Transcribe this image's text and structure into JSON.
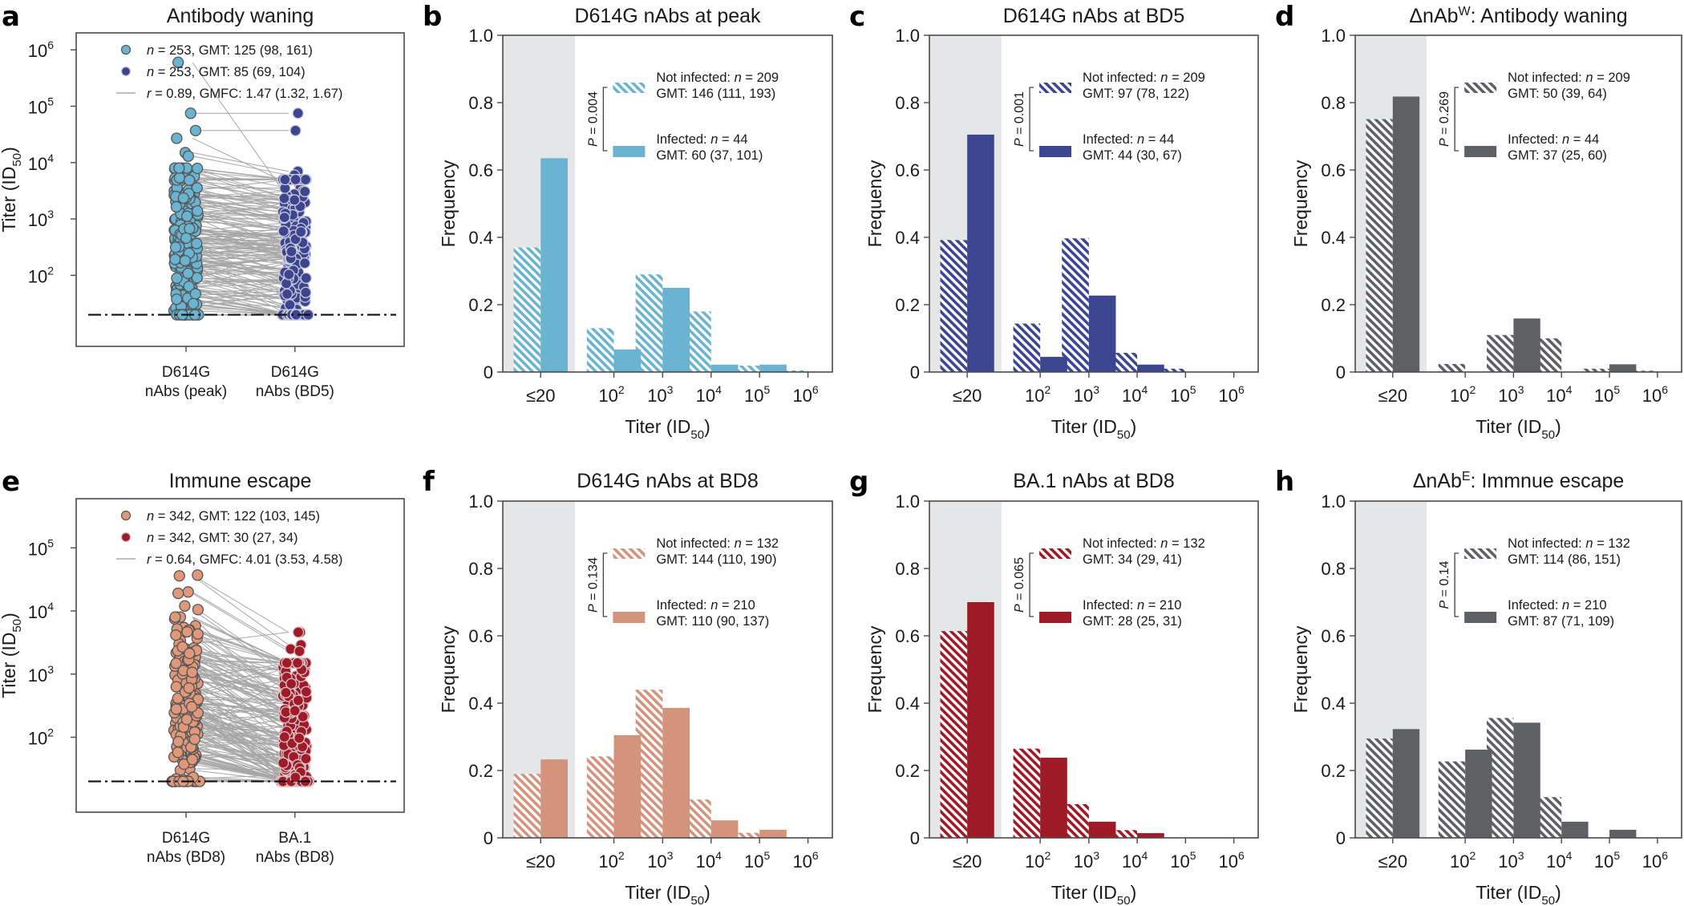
{
  "figure": {
    "panel_letters": [
      "a",
      "b",
      "c",
      "d",
      "e",
      "f",
      "g",
      "h"
    ]
  },
  "chart_data": [
    {
      "id": "a",
      "type": "scatter",
      "title": "Antibody waning",
      "ylabel": "Titer (ID50)",
      "ylabel_main": "Titer (ID",
      "ylabel_sub": "50",
      "yscale": "log",
      "ylim": [
        5.5,
        2000000
      ],
      "yticks": [
        100,
        1000,
        10000,
        100000,
        1000000
      ],
      "ytick_labels": [
        {
          "base": "10",
          "exp": "2"
        },
        {
          "base": "10",
          "exp": "3"
        },
        {
          "base": "10",
          "exp": "4"
        },
        {
          "base": "10",
          "exp": "5"
        },
        {
          "base": "10",
          "exp": "6"
        }
      ],
      "categories": [
        [
          "D614G",
          "nAbs (peak)"
        ],
        [
          "D614G",
          "nAbs (BD5)"
        ]
      ],
      "detection_limit": 20,
      "grid": false,
      "legend_position": "top",
      "legend": [
        {
          "marker": "dot",
          "color": "#6ab4d1",
          "stroke": "#555555",
          "n_prefix": "n",
          "text": " = 253, GMT: 125 (98, 161)"
        },
        {
          "marker": "dot",
          "color": "#3b4590",
          "stroke": "#c8c8d8",
          "n_prefix": "n",
          "text": " = 253, GMT: 85 (69, 104)"
        },
        {
          "marker": "line",
          "color": "#aaaaaa",
          "n_prefix": "r",
          "text": " = 0.89, GMFC: 1.47 (1.32, 1.67)"
        }
      ],
      "series": [
        {
          "name": "D614G nAbs (peak)",
          "n": 253,
          "gmt": 125,
          "ci": [
            98,
            161
          ],
          "color": "#6ab4d1",
          "edge": "#555555",
          "highlighted_points": [
            600000,
            75000,
            37000,
            27000,
            15000,
            13000,
            7800,
            7000,
            6800,
            5700,
            4200,
            3500
          ]
        },
        {
          "name": "D614G nAbs (BD5)",
          "n": 253,
          "gmt": 85,
          "ci": [
            69,
            104
          ],
          "color": "#3b4590",
          "edge": "#c9c9d9",
          "highlighted_points": [
            2300,
            75000,
            37000,
            4200,
            7000,
            6000,
            3500,
            2300,
            1900,
            1300,
            2200,
            900
          ]
        }
      ],
      "pairing": {
        "r": 0.89,
        "gmfc": 1.47,
        "gmfc_ci": [
          1.32,
          1.67
        ],
        "line_color": "#a6a6a6"
      }
    },
    {
      "id": "b",
      "type": "bar",
      "title": "D614G nAbs at peak",
      "xlabel": "Titer (ID50)",
      "ylabel": "Frequency",
      "ylim": [
        0,
        1.0
      ],
      "yticks": [
        0,
        0.2,
        0.4,
        0.6,
        0.8,
        1.0
      ],
      "ytick_labels": [
        "0",
        "0.2",
        "0.4",
        "0.6",
        "0.8",
        "1.0"
      ],
      "categories": [
        "≤20",
        "10^2",
        "10^3",
        "10^4",
        "10^5",
        "10^6"
      ],
      "category_labels": [
        {
          "base": "≤20",
          "exp": ""
        },
        {
          "base": "10",
          "exp": "2"
        },
        {
          "base": "10",
          "exp": "3"
        },
        {
          "base": "10",
          "exp": "4"
        },
        {
          "base": "10",
          "exp": "5"
        },
        {
          "base": "10",
          "exp": "6"
        }
      ],
      "shaded_category": "≤20",
      "color": "#6ab4d1",
      "p_value": "= 0.004",
      "series": [
        {
          "name": "Not infected",
          "hatched": true,
          "n": 209,
          "legend_line1": "Not infected: ",
          "legend_n": " = 209",
          "legend_line2": "GMT: 146 (111, 193)",
          "values": [
            0.37,
            0.13,
            0.29,
            0.18,
            0.019,
            0.005
          ]
        },
        {
          "name": "Infected",
          "hatched": false,
          "n": 44,
          "legend_line1": "Infected: ",
          "legend_n": " = 44",
          "legend_line2": "GMT: 60 (37, 101)",
          "values": [
            0.635,
            0.067,
            0.25,
            0.022,
            0.022,
            0.0
          ]
        }
      ],
      "legend_position": "upper-right",
      "grid": false
    },
    {
      "id": "c",
      "type": "bar",
      "title": "D614G nAbs at BD5",
      "xlabel": "Titer (ID50)",
      "ylabel": "Frequency",
      "ylim": [
        0,
        1.0
      ],
      "yticks": [
        0,
        0.2,
        0.4,
        0.6,
        0.8,
        1.0
      ],
      "ytick_labels": [
        "0",
        "0.2",
        "0.4",
        "0.6",
        "0.8",
        "1.0"
      ],
      "categories": [
        "≤20",
        "10^2",
        "10^3",
        "10^4",
        "10^5",
        "10^6"
      ],
      "category_labels": [
        {
          "base": "≤20",
          "exp": ""
        },
        {
          "base": "10",
          "exp": "2"
        },
        {
          "base": "10",
          "exp": "3"
        },
        {
          "base": "10",
          "exp": "4"
        },
        {
          "base": "10",
          "exp": "5"
        },
        {
          "base": "10",
          "exp": "6"
        }
      ],
      "shaded_category": "≤20",
      "color": "#3b4590",
      "p_value": "= 0.001",
      "series": [
        {
          "name": "Not infected",
          "hatched": true,
          "n": 209,
          "legend_line1": "Not infected: ",
          "legend_n": " = 209",
          "legend_line2": "GMT: 97 (78, 122)",
          "values": [
            0.392,
            0.144,
            0.397,
            0.057,
            0.01,
            0.0
          ]
        },
        {
          "name": "Infected",
          "hatched": false,
          "n": 44,
          "legend_line1": "Infected: ",
          "legend_n": " = 44",
          "legend_line2": "GMT: 44 (30, 67)",
          "values": [
            0.705,
            0.045,
            0.227,
            0.022,
            0.0,
            0.0
          ]
        }
      ],
      "legend_position": "upper-right",
      "grid": false
    },
    {
      "id": "d",
      "type": "bar",
      "title": "ΔnAb",
      "title_sup": "W",
      "title_rest": ": Antibody waning",
      "xlabel": "Titer (ID50)",
      "ylabel": "Frequency",
      "ylim": [
        0,
        1.0
      ],
      "yticks": [
        0,
        0.2,
        0.4,
        0.6,
        0.8,
        1.0
      ],
      "ytick_labels": [
        "0",
        "0.2",
        "0.4",
        "0.6",
        "0.8",
        "1.0"
      ],
      "categories": [
        "≤20",
        "10^2",
        "10^3",
        "10^4",
        "10^5",
        "10^6"
      ],
      "category_labels": [
        {
          "base": "≤20",
          "exp": ""
        },
        {
          "base": "10",
          "exp": "2"
        },
        {
          "base": "10",
          "exp": "3"
        },
        {
          "base": "10",
          "exp": "4"
        },
        {
          "base": "10",
          "exp": "5"
        },
        {
          "base": "10",
          "exp": "6"
        }
      ],
      "shaded_category": "≤20",
      "color": "#5e6064",
      "p_value": "= 0.269",
      "series": [
        {
          "name": "Not infected",
          "hatched": true,
          "n": 209,
          "legend_line1": "Not infected: ",
          "legend_n": " = 209",
          "legend_line2": "GMT: 50 (39, 64)",
          "values": [
            0.751,
            0.024,
            0.11,
            0.1,
            0.01,
            0.004
          ]
        },
        {
          "name": "Infected",
          "hatched": false,
          "n": 44,
          "legend_line1": "Infected: ",
          "legend_n": " = 44",
          "legend_line2": "GMT: 37 (25, 60)",
          "values": [
            0.818,
            0.0,
            0.159,
            0.0,
            0.023,
            0.0
          ]
        }
      ],
      "legend_position": "upper-right",
      "grid": false
    },
    {
      "id": "e",
      "type": "scatter",
      "title": "Immune escape",
      "ylabel": "Titer (ID50)",
      "ylabel_main": "Titer (ID",
      "ylabel_sub": "50",
      "yscale": "log",
      "ylim": [
        6.5,
        600000
      ],
      "yticks": [
        100,
        1000,
        10000,
        100000
      ],
      "ytick_labels": [
        {
          "base": "10",
          "exp": "2"
        },
        {
          "base": "10",
          "exp": "3"
        },
        {
          "base": "10",
          "exp": "4"
        },
        {
          "base": "10",
          "exp": "5"
        }
      ],
      "categories": [
        [
          "D614G",
          "nAbs (BD8)"
        ],
        [
          "BA.1",
          "nAbs (BD8)"
        ]
      ],
      "detection_limit": 20,
      "grid": false,
      "legend_position": "top",
      "legend": [
        {
          "marker": "dot",
          "color": "#e0987a",
          "stroke": "#555555",
          "n_prefix": "n",
          "text": " = 342, GMT: 122 (103, 145)"
        },
        {
          "marker": "dot",
          "color": "#a01a28",
          "stroke": "#d4b8bc",
          "n_prefix": "n",
          "text": " = 342, GMT: 30 (27, 34)"
        },
        {
          "marker": "line",
          "color": "#aaaaaa",
          "n_prefix": "r",
          "text": " = 0.64, GMFC: 4.01 (3.53, 4.58)"
        }
      ],
      "series": [
        {
          "name": "D614G nAbs (BD8)",
          "n": 342,
          "gmt": 122,
          "ci": [
            103,
            145
          ],
          "color": "#e0987a",
          "edge": "#555555",
          "highlighted_points": [
            37000,
            36000,
            20000,
            19000,
            12000,
            10500,
            5800,
            5000,
            4300,
            3400,
            3000
          ]
        },
        {
          "name": "BA.1 nAbs (BD8)",
          "n": 342,
          "gmt": 30,
          "ci": [
            27,
            34
          ],
          "color": "#a01a28",
          "edge": "#d8c4c7",
          "highlighted_points": [
            4600,
            2900,
            2500,
            2300,
            1050,
            930,
            610,
            540,
            350,
            300
          ]
        }
      ],
      "pairing": {
        "r": 0.64,
        "gmfc": 4.01,
        "gmfc_ci": [
          3.53,
          4.58
        ],
        "line_color": "#a6a6a6"
      }
    },
    {
      "id": "f",
      "type": "bar",
      "title": "D614G nAbs at BD8",
      "xlabel": "Titer (ID50)",
      "ylabel": "Frequency",
      "ylim": [
        0,
        1.0
      ],
      "yticks": [
        0,
        0.2,
        0.4,
        0.6,
        0.8,
        1.0
      ],
      "ytick_labels": [
        "0",
        "0.2",
        "0.4",
        "0.6",
        "0.8",
        "1.0"
      ],
      "categories": [
        "≤20",
        "10^2",
        "10^3",
        "10^4",
        "10^5",
        "10^6"
      ],
      "category_labels": [
        {
          "base": "≤20",
          "exp": ""
        },
        {
          "base": "10",
          "exp": "2"
        },
        {
          "base": "10",
          "exp": "3"
        },
        {
          "base": "10",
          "exp": "4"
        },
        {
          "base": "10",
          "exp": "5"
        },
        {
          "base": "10",
          "exp": "6"
        }
      ],
      "shaded_category": "≤20",
      "color": "#d4937d",
      "p_value": "= 0.134",
      "series": [
        {
          "name": "Not infected",
          "hatched": true,
          "n": 132,
          "legend_line1": "Not infected: ",
          "legend_n": " = 132",
          "legend_line2": "GMT: 144 (110, 190)",
          "values": [
            0.19,
            0.242,
            0.44,
            0.114,
            0.015,
            0.0
          ]
        },
        {
          "name": "Infected",
          "hatched": false,
          "n": 210,
          "legend_line1": "Infected: ",
          "legend_n": " = 210",
          "legend_line2": "GMT: 110 (90, 137)",
          "values": [
            0.233,
            0.305,
            0.386,
            0.052,
            0.024,
            0.0
          ]
        }
      ],
      "legend_position": "upper-right",
      "grid": false
    },
    {
      "id": "g",
      "type": "bar",
      "title": "BA.1 nAbs at BD8",
      "xlabel": "Titer (ID50)",
      "ylabel": "Frequency",
      "ylim": [
        0,
        1.0
      ],
      "yticks": [
        0,
        0.2,
        0.4,
        0.6,
        0.8,
        1.0
      ],
      "ytick_labels": [
        "0",
        "0.2",
        "0.4",
        "0.6",
        "0.8",
        "1.0"
      ],
      "categories": [
        "≤20",
        "10^2",
        "10^3",
        "10^4",
        "10^5",
        "10^6"
      ],
      "category_labels": [
        {
          "base": "≤20",
          "exp": ""
        },
        {
          "base": "10",
          "exp": "2"
        },
        {
          "base": "10",
          "exp": "3"
        },
        {
          "base": "10",
          "exp": "4"
        },
        {
          "base": "10",
          "exp": "5"
        },
        {
          "base": "10",
          "exp": "6"
        }
      ],
      "shaded_category": "≤20",
      "color": "#9e1a26",
      "p_value": "= 0.065",
      "series": [
        {
          "name": "Not infected",
          "hatched": true,
          "n": 132,
          "legend_line1": "Not infected: ",
          "legend_n": " = 132",
          "legend_line2": "GMT: 34 (29, 41)",
          "values": [
            0.614,
            0.265,
            0.1,
            0.023,
            0.0,
            0.0
          ]
        },
        {
          "name": "Infected",
          "hatched": false,
          "n": 210,
          "legend_line1": "Infected: ",
          "legend_n": " = 210",
          "legend_line2": "GMT: 28 (25, 31)",
          "values": [
            0.7,
            0.238,
            0.048,
            0.014,
            0.0,
            0.0
          ]
        }
      ],
      "legend_position": "upper-right",
      "grid": false
    },
    {
      "id": "h",
      "type": "bar",
      "title": "ΔnAb",
      "title_sup": "E",
      "title_rest": ": Immnue escape",
      "xlabel": "Titer (ID50)",
      "ylabel": "Frequency",
      "ylim": [
        0,
        1.0
      ],
      "yticks": [
        0,
        0.2,
        0.4,
        0.6,
        0.8,
        1.0
      ],
      "ytick_labels": [
        "0",
        "0.2",
        "0.4",
        "0.6",
        "0.8",
        "1.0"
      ],
      "categories": [
        "≤20",
        "10^2",
        "10^3",
        "10^4",
        "10^5",
        "10^6"
      ],
      "category_labels": [
        {
          "base": "≤20",
          "exp": ""
        },
        {
          "base": "10",
          "exp": "2"
        },
        {
          "base": "10",
          "exp": "3"
        },
        {
          "base": "10",
          "exp": "4"
        },
        {
          "base": "10",
          "exp": "5"
        },
        {
          "base": "10",
          "exp": "6"
        }
      ],
      "shaded_category": "≤20",
      "color": "#5e6064",
      "p_value": "= 0.14",
      "series": [
        {
          "name": "Not infected",
          "hatched": true,
          "n": 132,
          "legend_line1": "Not infected: ",
          "legend_n": " = 132",
          "legend_line2": "GMT: 114 (86, 151)",
          "values": [
            0.295,
            0.227,
            0.356,
            0.121,
            0.0,
            0.0
          ]
        },
        {
          "name": "Infected",
          "hatched": false,
          "n": 210,
          "legend_line1": "Infected: ",
          "legend_n": " = 210",
          "legend_line2": "GMT: 87 (71, 109)",
          "values": [
            0.323,
            0.262,
            0.342,
            0.048,
            0.024,
            0.0
          ]
        }
      ],
      "legend_position": "upper-right",
      "grid": false
    }
  ]
}
